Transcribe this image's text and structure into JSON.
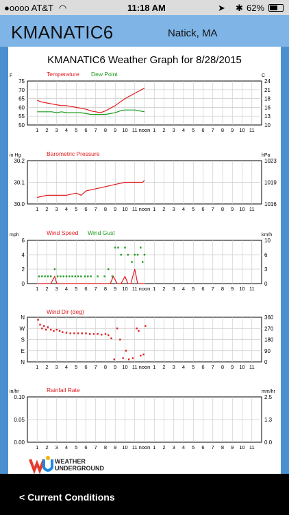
{
  "status": {
    "carrier": "●oooo AT&T",
    "time": "11:18 AM",
    "battery": "62%"
  },
  "header": {
    "station": "KMANATIC6",
    "location": "Natick, MA"
  },
  "graph_title": "KMANATIC6 Weather Graph for 8/28/2015",
  "bottom": {
    "back_label": "< Current Conditions"
  },
  "branding": {
    "line1": "WEATHER",
    "line2": "UNDERGROUND"
  },
  "colors": {
    "temperature": "#e0191b",
    "dew_point": "#1a9a1a",
    "grid": "#cccccc"
  },
  "x_labels": [
    "1",
    "2",
    "3",
    "4",
    "5",
    "6",
    "7",
    "8",
    "9",
    "10",
    "11",
    "noon",
    "1",
    "2",
    "3",
    "4",
    "5",
    "6",
    "7",
    "8",
    "9",
    "10",
    "11"
  ],
  "chart_data": [
    {
      "type": "line",
      "left_unit": "F",
      "right_unit": "C",
      "left_ticks": [
        "75",
        "70",
        "65",
        "60",
        "55",
        "50"
      ],
      "right_ticks": [
        "24",
        "21",
        "18",
        "16",
        "13",
        "10"
      ],
      "ylim": [
        50,
        75
      ],
      "series": [
        {
          "name": "Temperature",
          "color": "#e0191b",
          "x": [
            0,
            0.5,
            1,
            1.5,
            2,
            2.5,
            3,
            3.5,
            4,
            4.5,
            5,
            5.5,
            6,
            6.5,
            7,
            7.5,
            8,
            8.5,
            9,
            9.5,
            10,
            10.5,
            11
          ],
          "values": [
            64,
            63,
            62.5,
            62,
            61.5,
            61,
            61,
            60.5,
            60,
            59.5,
            59,
            58,
            57.5,
            57,
            58,
            59.5,
            61,
            63,
            65,
            66.5,
            68,
            69.5,
            71
          ]
        },
        {
          "name": "Dew Point",
          "color": "#1a9a1a",
          "x": [
            0,
            0.5,
            1,
            1.5,
            2,
            2.5,
            3,
            3.5,
            4,
            4.5,
            5,
            5.5,
            6,
            6.5,
            7,
            7.5,
            8,
            8.5,
            9,
            9.5,
            10,
            10.5,
            11
          ],
          "values": [
            57.5,
            57.5,
            57.5,
            57.5,
            57,
            57.5,
            57,
            57,
            57,
            57,
            56.5,
            56,
            56,
            56,
            56,
            56.5,
            57,
            58,
            58.5,
            58.5,
            58.5,
            58,
            57.5
          ]
        }
      ]
    },
    {
      "type": "line",
      "left_unit": "in Hg",
      "right_unit": "hPa",
      "left_ticks": [
        "30.2",
        "30.1",
        "30.0"
      ],
      "right_ticks": [
        "1023",
        "1019",
        "1016"
      ],
      "ylim": [
        30.0,
        30.2
      ],
      "series": [
        {
          "name": "Barometric Pressure",
          "color": "#e0191b",
          "x": [
            0,
            1,
            2,
            3,
            4,
            4.5,
            5,
            6,
            7,
            8,
            9,
            10,
            10.8,
            11
          ],
          "values": [
            30.03,
            30.04,
            30.04,
            30.04,
            30.05,
            30.04,
            30.06,
            30.07,
            30.08,
            30.09,
            30.1,
            30.1,
            30.1,
            30.11
          ]
        }
      ]
    },
    {
      "type": "line",
      "left_unit": "mph",
      "right_unit": "km/h",
      "left_ticks": [
        "6",
        "4",
        "2",
        "0"
      ],
      "right_ticks": [
        "10",
        "6",
        "3",
        "0"
      ],
      "ylim": [
        0,
        6
      ],
      "series": [
        {
          "name": "Wind Speed",
          "color": "#e0191b",
          "x": [
            0,
            1,
            1.4,
            1.8,
            2,
            3,
            4,
            5,
            6,
            7,
            7.5,
            7.8,
            8.2,
            8.6,
            9,
            9.3,
            9.6,
            10,
            10.3,
            10.6,
            11
          ],
          "values": [
            0,
            0,
            0,
            1,
            0,
            0,
            0,
            0,
            0,
            0,
            0,
            1,
            0,
            0,
            1,
            0,
            0,
            2,
            0,
            0,
            0
          ]
        },
        {
          "name": "Wind Gust",
          "color": "#1a9a1a",
          "style": "dots",
          "x": [
            0.2,
            0.5,
            0.8,
            1.1,
            1.4,
            1.8,
            2.1,
            2.4,
            2.7,
            3.0,
            3.3,
            3.6,
            3.9,
            4.2,
            4.5,
            4.9,
            5.2,
            5.5,
            6.2,
            6.9,
            7.3,
            7.7,
            8.0,
            8.3,
            8.6,
            9.0,
            9.3,
            9.7,
            10.0,
            10.3,
            10.6,
            10.8,
            11.0
          ],
          "values": [
            1,
            1,
            1,
            1,
            1,
            2,
            1,
            1,
            1,
            1,
            1,
            1,
            1,
            1,
            1,
            1,
            1,
            1,
            1,
            1,
            2,
            1,
            5,
            5,
            4,
            5,
            4,
            3,
            4,
            4,
            5,
            3,
            4
          ]
        }
      ]
    },
    {
      "type": "scatter",
      "left_unit": "",
      "right_unit": "",
      "left_ticks": [
        "N",
        "W",
        "S",
        "E",
        "N"
      ],
      "right_ticks": [
        "360",
        "270",
        "180",
        "90",
        "0"
      ],
      "ylim": [
        0,
        360
      ],
      "series": [
        {
          "name": "Wind Dir (deg)",
          "color": "#e0191b",
          "x": [
            0.1,
            0.3,
            0.5,
            0.7,
            0.9,
            1.1,
            1.4,
            1.7,
            2.0,
            2.3,
            2.6,
            3.0,
            3.4,
            3.8,
            4.2,
            4.6,
            5.0,
            5.4,
            5.8,
            6.2,
            6.6,
            7.0,
            7.3,
            7.6,
            7.9,
            8.2,
            8.5,
            8.8,
            9.1,
            9.4,
            9.8,
            10.2,
            10.4,
            10.6,
            10.9,
            11.1
          ],
          "values": [
            340,
            300,
            270,
            290,
            260,
            280,
            260,
            250,
            260,
            250,
            240,
            235,
            230,
            230,
            230,
            230,
            230,
            225,
            225,
            225,
            220,
            225,
            215,
            190,
            20,
            270,
            180,
            30,
            90,
            20,
            30,
            270,
            250,
            50,
            60,
            290
          ]
        }
      ]
    },
    {
      "type": "line",
      "left_unit": "in/hr",
      "right_unit": "mm/hr",
      "left_ticks": [
        "0.10",
        "0.05",
        "0.00"
      ],
      "right_ticks": [
        "2.5",
        "1.3",
        "0.0"
      ],
      "ylim": [
        0,
        0.1
      ],
      "series": [
        {
          "name": "Rainfall Rate",
          "color": "#e0191b",
          "x": [],
          "values": []
        }
      ]
    }
  ]
}
